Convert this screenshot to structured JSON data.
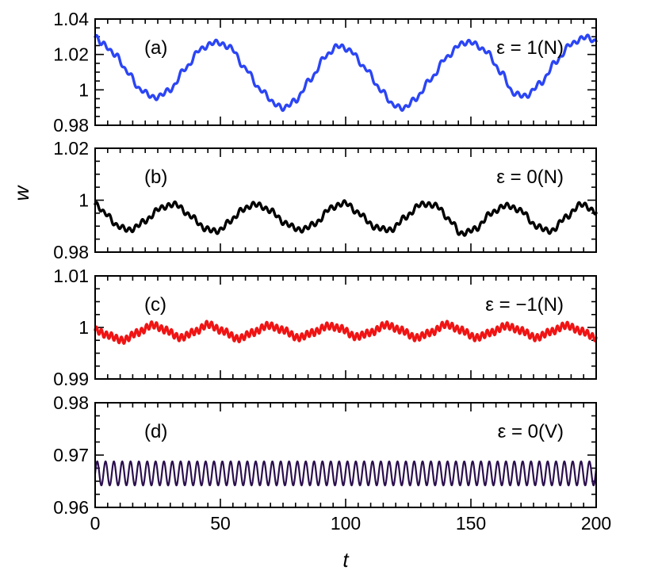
{
  "chart_data": {
    "type": "line",
    "xlabel": "t",
    "ylabel": "w",
    "xlim": [
      0,
      200
    ],
    "x_ticks": [
      "0",
      "50",
      "100",
      "150",
      "200"
    ],
    "panels": [
      {
        "id": "a",
        "label": "(a)",
        "annotation": "ε = 1(N)",
        "color": "#2b45f5",
        "ylim": [
          0.98,
          1.04
        ],
        "y_ticks": [
          {
            "value": 0.98,
            "label": "0.98"
          },
          {
            "value": 1.0,
            "label": "1"
          },
          {
            "value": 1.02,
            "label": "1.02"
          },
          {
            "value": 1.04,
            "label": "1.04"
          }
        ],
        "series": {
          "name": "ε = 1(N)",
          "x": [
            0,
            3,
            8,
            13,
            18,
            24,
            30,
            36,
            42,
            48,
            54,
            60,
            66,
            72,
            75,
            80,
            86,
            92,
            97,
            102,
            108,
            114,
            119,
            123,
            128,
            134,
            140,
            146,
            150,
            156,
            162,
            167,
            172,
            178,
            184,
            190,
            196,
            200
          ],
          "values": [
            1.03,
            1.026,
            1.02,
            1.01,
            1.0,
            0.9955,
            1.0,
            1.012,
            1.023,
            1.027,
            1.024,
            1.012,
            1.0,
            0.992,
            0.9895,
            0.994,
            1.006,
            1.019,
            1.025,
            1.022,
            1.012,
            1.0,
            0.9915,
            0.9895,
            0.995,
            1.006,
            1.018,
            1.026,
            1.027,
            1.022,
            1.01,
            0.998,
            0.9965,
            1.004,
            1.016,
            1.026,
            1.03,
            1.027
          ],
          "ripple_amplitude": 0.0012,
          "ripple_period": 2.8
        }
      },
      {
        "id": "b",
        "label": "(b)",
        "annotation": "ε = 0(N)",
        "color": "#000000",
        "ylim": [
          0.98,
          1.02
        ],
        "y_ticks": [
          {
            "value": 0.98,
            "label": "0.98"
          },
          {
            "value": 1.0,
            "label": "1"
          },
          {
            "value": 1.02,
            "label": "1.02"
          }
        ],
        "series": {
          "name": "ε = 0(N)",
          "x": [
            0,
            4,
            9,
            14,
            20,
            26,
            32,
            38,
            44,
            49,
            54,
            59,
            64,
            70,
            76,
            82,
            88,
            94,
            100,
            105,
            112,
            118,
            124,
            130,
            136,
            142,
            146,
            152,
            158,
            164,
            170,
            176,
            182,
            188,
            194,
            200
          ],
          "values": [
            0.9985,
            0.995,
            0.99,
            0.9885,
            0.992,
            0.997,
            0.9985,
            0.994,
            0.989,
            0.988,
            0.992,
            0.9965,
            0.9985,
            0.996,
            0.991,
            0.9885,
            0.991,
            0.997,
            0.999,
            0.995,
            0.9895,
            0.9885,
            0.9935,
            0.9985,
            0.998,
            0.992,
            0.987,
            0.989,
            0.995,
            0.998,
            0.996,
            0.99,
            0.988,
            0.9935,
            0.9985,
            0.9955
          ],
          "ripple_amplitude": 0.0009,
          "ripple_period": 2.6
        }
      },
      {
        "id": "c",
        "label": "(c)",
        "annotation": "ε = −1(N)",
        "color": "#f01414",
        "ylim": [
          0.99,
          1.01
        ],
        "y_ticks": [
          {
            "value": 0.99,
            "label": "0.99"
          },
          {
            "value": 1.0,
            "label": "1"
          },
          {
            "value": 1.01,
            "label": "1.01"
          }
        ],
        "series": {
          "name": "ε = −1(N)",
          "x": [
            0,
            5,
            11,
            17,
            23,
            28,
            34,
            40,
            45,
            51,
            57,
            63,
            69,
            75,
            81,
            87,
            93,
            98,
            104,
            110,
            116,
            122,
            128,
            134,
            140,
            146,
            152,
            158,
            164,
            170,
            176,
            182,
            188,
            194,
            200
          ],
          "values": [
            0.9995,
            0.9985,
            0.9975,
            0.999,
            1.0005,
            0.9995,
            0.998,
            0.9992,
            1.0006,
            0.9993,
            0.9978,
            0.999,
            1.0004,
            0.9995,
            0.998,
            0.999,
            1.0003,
            0.9998,
            0.9982,
            0.999,
            1.0005,
            0.9995,
            0.998,
            0.999,
            1.0006,
            0.9995,
            0.998,
            0.999,
            1.0003,
            0.9994,
            0.998,
            0.9992,
            1.0004,
            0.9993,
            0.998
          ],
          "ripple_amplitude": 0.00065,
          "ripple_period": 2.0
        }
      },
      {
        "id": "d",
        "label": "(d)",
        "annotation": "ε = 0(V)",
        "color": "#2b0f4d",
        "ylim": [
          0.96,
          0.98
        ],
        "y_ticks": [
          {
            "value": 0.96,
            "label": "0.96"
          },
          {
            "value": 0.97,
            "label": "0.97"
          },
          {
            "value": 0.98,
            "label": "0.98"
          }
        ],
        "series": {
          "name": "ε = 0(V)",
          "x": [
            0,
            200
          ],
          "values": [
            0.9665,
            0.9665
          ],
          "ripple_amplitude": 0.0023,
          "ripple_period": 3.33
        }
      }
    ]
  }
}
